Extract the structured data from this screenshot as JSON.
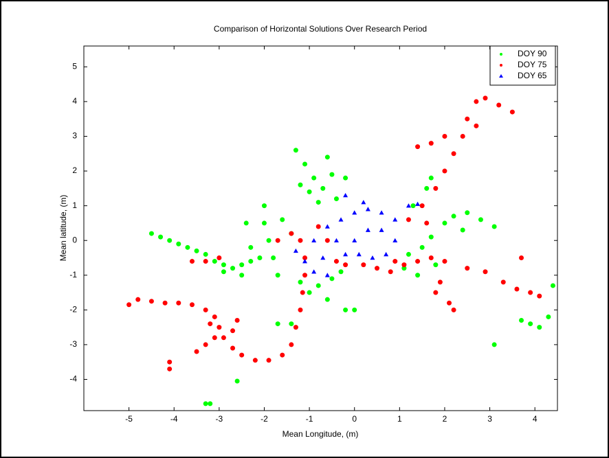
{
  "chart_data": {
    "type": "scatter",
    "title": "Comparison of Horizontal Solutions Over Research Period",
    "x_label": "Mean Longitude, (m)",
    "y_label": "Mean latitude, (m)",
    "xlim": [
      -6,
      4.5
    ],
    "ylim": [
      -4.9,
      5.6
    ],
    "xticks": [
      -5,
      -4,
      -3,
      -2,
      -1,
      0,
      1,
      2,
      3,
      4
    ],
    "yticks": [
      -4,
      -3,
      -2,
      -1,
      0,
      1,
      2,
      3,
      4,
      5
    ],
    "legend": "upper right",
    "series": [
      {
        "name": "DOY 90",
        "color": "#00ff00",
        "marker": "dot",
        "x": [
          -4.5,
          -4.3,
          -4.1,
          -3.9,
          -3.7,
          -3.5,
          -3.3,
          -3.1,
          -2.9,
          -2.7,
          -2.5,
          -2.3,
          -2.1,
          -2.9,
          -2.5,
          -2.0,
          -2.0,
          -1.9,
          -1.8,
          -1.7,
          -1.6,
          -1.4,
          -2.4,
          -2.3,
          -1.3,
          -1.1,
          -0.9,
          -0.7,
          -0.6,
          -0.8,
          -1.0,
          -0.5,
          -0.4,
          -1.2,
          -0.2,
          -1.2,
          -1.0,
          -0.8,
          -0.5,
          -0.3,
          -0.6,
          -0.2,
          0.0,
          1.2,
          1.5,
          1.7,
          2.0,
          2.2,
          2.5,
          2.8,
          3.1,
          2.4,
          1.8,
          1.4,
          1.1,
          3.7,
          3.9,
          4.1,
          4.3,
          4.4,
          3.1,
          -1.7,
          -1.4,
          -2.6,
          -3.2,
          -3.3,
          1.6,
          1.7,
          1.3
        ],
        "y": [
          0.2,
          0.1,
          0.0,
          -0.1,
          -0.2,
          -0.3,
          -0.4,
          -0.6,
          -0.7,
          -0.8,
          -0.7,
          -0.6,
          -0.5,
          -0.9,
          -1.0,
          1.0,
          0.5,
          0.0,
          -0.5,
          -1.0,
          0.6,
          0.2,
          0.5,
          -0.2,
          2.6,
          2.2,
          1.8,
          1.5,
          2.4,
          1.1,
          1.4,
          1.9,
          1.2,
          1.6,
          1.8,
          -1.2,
          -1.5,
          -1.3,
          -1.1,
          -0.9,
          -1.7,
          -2.0,
          -2.0,
          -0.4,
          -0.2,
          0.1,
          0.5,
          0.7,
          0.8,
          0.6,
          0.4,
          0.3,
          -0.7,
          -1.0,
          -0.8,
          -2.3,
          -2.4,
          -2.5,
          -2.2,
          -1.3,
          -3.0,
          -2.4,
          -2.4,
          -4.05,
          -4.7,
          -4.7,
          1.5,
          1.8,
          1.0
        ]
      },
      {
        "name": "DOY 75",
        "color": "#ff0000",
        "marker": "dot",
        "x": [
          -5.0,
          -4.8,
          -4.5,
          -4.2,
          -3.9,
          -3.6,
          -3.3,
          -3.1,
          -3.0,
          -3.1,
          -3.3,
          -3.5,
          -3.2,
          -2.9,
          -2.7,
          -2.5,
          -2.2,
          -1.9,
          -1.6,
          -1.4,
          -1.3,
          -1.2,
          -1.15,
          -1.1,
          -1.1,
          -1.2,
          -1.4,
          -1.7,
          -2.6,
          -2.7,
          -4.1,
          -4.1,
          -3.3,
          -3.6,
          -3.0,
          -0.8,
          -0.6,
          -0.4,
          -0.2,
          0.2,
          0.5,
          0.8,
          1.1,
          1.4,
          1.7,
          2.0,
          1.9,
          2.1,
          2.2,
          1.8,
          2.5,
          2.9,
          3.3,
          3.6,
          3.9,
          4.1,
          3.7,
          1.2,
          1.5,
          1.8,
          2.0,
          2.2,
          2.4,
          2.5,
          2.7,
          2.9,
          3.2,
          3.5,
          1.4,
          1.7,
          2.0,
          2.7,
          0.9,
          1.6
        ],
        "y": [
          -1.85,
          -1.7,
          -1.75,
          -1.8,
          -1.8,
          -1.85,
          -2.0,
          -2.2,
          -2.5,
          -2.8,
          -3.0,
          -3.2,
          -2.4,
          -2.8,
          -3.1,
          -3.3,
          -3.45,
          -3.45,
          -3.3,
          -3.0,
          -2.5,
          -2.0,
          -1.5,
          -1.0,
          -0.5,
          0.0,
          0.2,
          0.0,
          -2.3,
          -2.6,
          -3.5,
          -3.7,
          -0.6,
          -0.6,
          -0.5,
          0.4,
          0.0,
          -0.6,
          -0.7,
          -0.7,
          -0.8,
          -0.9,
          -0.7,
          -0.6,
          -0.5,
          -0.6,
          -1.2,
          -1.8,
          -2.0,
          -1.5,
          -0.8,
          -0.9,
          -1.2,
          -1.4,
          -1.5,
          -1.6,
          -0.5,
          0.6,
          1.0,
          1.5,
          2.0,
          2.5,
          3.0,
          3.5,
          4.0,
          4.1,
          3.9,
          3.7,
          2.7,
          2.8,
          3.0,
          3.3,
          -0.6,
          0.5
        ]
      },
      {
        "name": "DOY 65",
        "color": "#0000ff",
        "marker": "triangle",
        "x": [
          -1.3,
          -1.1,
          -0.9,
          -0.7,
          -0.9,
          -0.6,
          -0.3,
          0.0,
          0.3,
          0.6,
          0.9,
          0.9,
          0.7,
          0.4,
          0.1,
          -0.2,
          -0.4,
          0.0,
          0.3,
          0.6,
          -0.2,
          0.2,
          1.2,
          1.4,
          -0.6
        ],
        "y": [
          -0.3,
          -0.6,
          -0.9,
          -0.5,
          0.0,
          0.4,
          0.6,
          0.8,
          0.9,
          0.8,
          0.6,
          0.0,
          -0.4,
          -0.5,
          -0.4,
          -0.4,
          0.0,
          0.0,
          0.3,
          0.3,
          1.3,
          1.1,
          1.0,
          1.05,
          -1.0
        ]
      }
    ]
  }
}
